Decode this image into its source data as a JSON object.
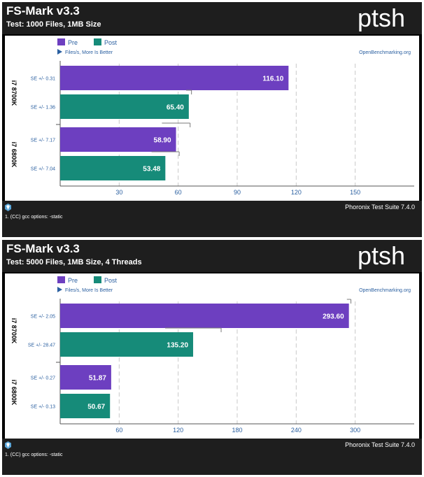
{
  "footer_text": "Phoronix Test Suite 7.4.0",
  "footnote": "1. (CC) gcc options: -static",
  "logo_text": "ptsh",
  "legend": [
    {
      "name": "Pre",
      "color": "#6d3fc0"
    },
    {
      "name": "Post",
      "color": "#168b79"
    }
  ],
  "direction_note": "Files/s, More Is Better",
  "source": "OpenBenchmarking.org",
  "chart_data": [
    {
      "type": "bar",
      "title": "FS-Mark v3.3",
      "subtitle": "Test: 1000 Files, 1MB Size",
      "xlim": [
        0,
        180
      ],
      "ticks": [
        30,
        60,
        90,
        120,
        150
      ],
      "groups": [
        "i7 8700K",
        "i7 6800K"
      ],
      "series_names": [
        "Pre",
        "Post"
      ],
      "bars": [
        {
          "group": 0,
          "series": 0,
          "value": 116.1,
          "label": "116.10",
          "se": "SE +/- 0.31",
          "err": 0.31
        },
        {
          "group": 0,
          "series": 1,
          "value": 65.4,
          "label": "65.40",
          "se": "SE +/- 1.36",
          "err": 1.36
        },
        {
          "group": 1,
          "series": 0,
          "value": 58.9,
          "label": "58.90",
          "se": "SE +/- 7.17",
          "err": 7.17
        },
        {
          "group": 1,
          "series": 1,
          "value": 53.48,
          "label": "53.48",
          "se": "SE +/- 7.04",
          "err": 7.04
        }
      ]
    },
    {
      "type": "bar",
      "title": "FS-Mark v3.3",
      "subtitle": "Test: 5000 Files, 1MB Size, 4 Threads",
      "xlim": [
        0,
        360
      ],
      "ticks": [
        60,
        120,
        180,
        240,
        300
      ],
      "groups": [
        "i7 8700K",
        "i7 6800K"
      ],
      "series_names": [
        "Pre",
        "Post"
      ],
      "bars": [
        {
          "group": 0,
          "series": 0,
          "value": 293.6,
          "label": "293.60",
          "se": "SE +/- 2.05",
          "err": 2.05
        },
        {
          "group": 0,
          "series": 1,
          "value": 135.2,
          "label": "135.20",
          "se": "SE +/- 28.47",
          "err": 28.47
        },
        {
          "group": 1,
          "series": 0,
          "value": 51.87,
          "label": "51.87",
          "se": "SE +/- 0.27",
          "err": 0.27
        },
        {
          "group": 1,
          "series": 1,
          "value": 50.67,
          "label": "50.67",
          "se": "SE +/- 0.13",
          "err": 0.13
        }
      ]
    }
  ]
}
